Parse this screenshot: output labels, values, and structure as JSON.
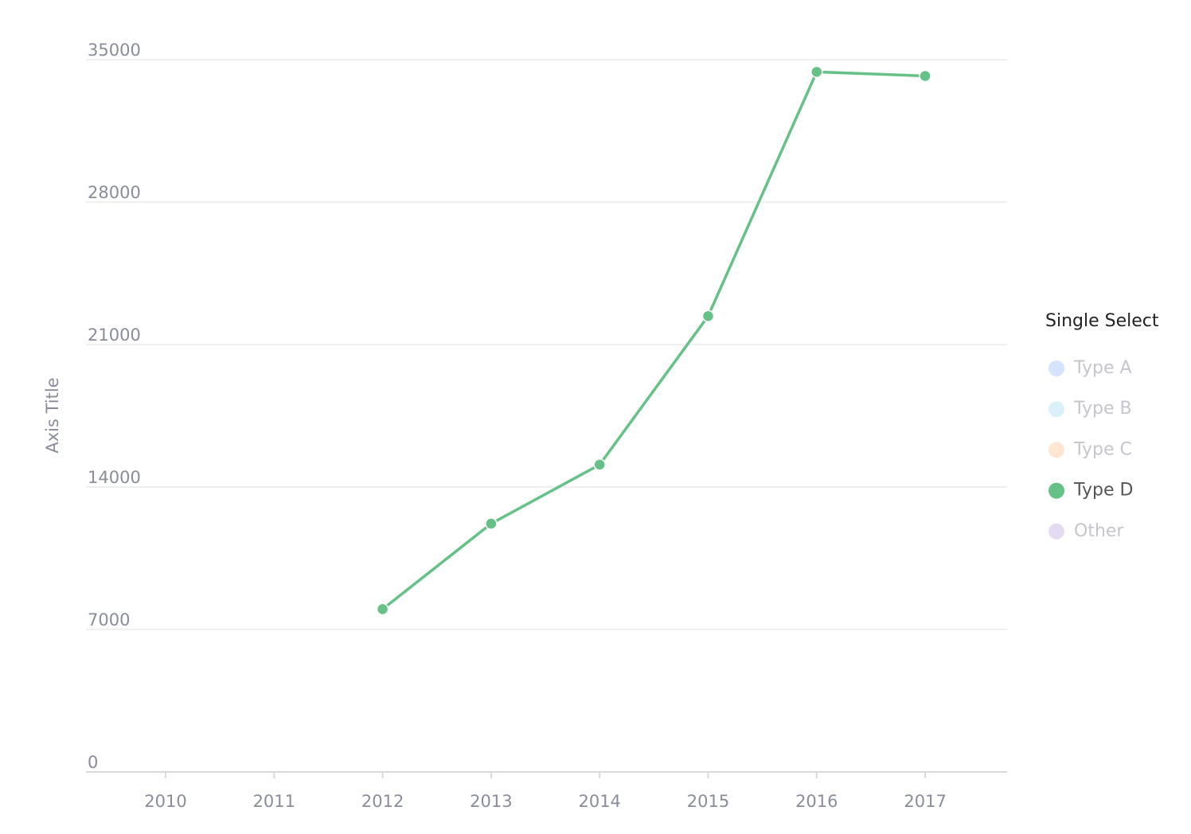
{
  "chart_data": {
    "type": "line",
    "y_axis_title": "Axis Title",
    "categories": [
      "2010",
      "2011",
      "2012",
      "2013",
      "2014",
      "2015",
      "2016",
      "2017"
    ],
    "series": [
      {
        "name": "Type D",
        "color": "#65c186",
        "values": [
          null,
          null,
          8000,
          12200,
          15100,
          22400,
          34400,
          34200
        ]
      }
    ],
    "ylim": [
      0,
      35000
    ],
    "yticks": [
      0,
      7000,
      14000,
      21000,
      28000,
      35000
    ],
    "grid": true,
    "legend": {
      "title": "Single Select",
      "position": "right",
      "items": [
        {
          "name": "Type A",
          "color": "#5b8ff9",
          "selected": false
        },
        {
          "name": "Type B",
          "color": "#6dc8ec",
          "selected": false
        },
        {
          "name": "Type C",
          "color": "#ff9d4d",
          "selected": false
        },
        {
          "name": "Type D",
          "color": "#65c186",
          "selected": true
        },
        {
          "name": "Other",
          "color": "#9270ca",
          "selected": false
        }
      ]
    }
  }
}
